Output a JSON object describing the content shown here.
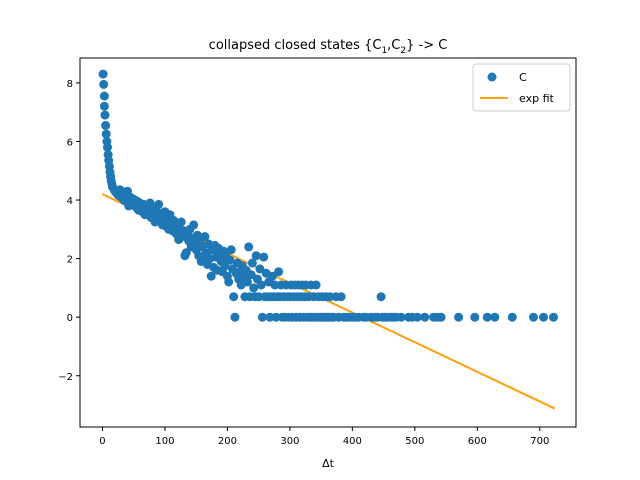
{
  "chart_data": {
    "type": "scatter",
    "title_main": "collapsed closed states {C",
    "title_sub1": "1",
    "title_sep": ",C",
    "title_sub2": "2",
    "title_tail": "} -> C",
    "xlabel": "Δt",
    "ylabel": "",
    "xlim": [
      -36,
      758
    ],
    "ylim": [
      -3.75,
      8.85
    ],
    "xticks": [
      0,
      100,
      200,
      300,
      400,
      500,
      600,
      700
    ],
    "yticks": [
      -2,
      0,
      2,
      4,
      6,
      8
    ],
    "ytick_labels": [
      "−2",
      "0",
      "2",
      "4",
      "6",
      "8"
    ],
    "colors": {
      "scatter": "#1f77b4",
      "fit": "#ff9f0e"
    },
    "legend": {
      "location": "top-right",
      "scatter_label": "C",
      "fit_label": "exp fit"
    },
    "fit": {
      "x": [
        0,
        724
      ],
      "y": [
        4.2,
        -3.12
      ]
    },
    "series": [
      {
        "name": "C",
        "points": [
          [
            1,
            8.3
          ],
          [
            2,
            7.95
          ],
          [
            3,
            7.55
          ],
          [
            3,
            7.2
          ],
          [
            4,
            6.9
          ],
          [
            5,
            6.55
          ],
          [
            6,
            6.25
          ],
          [
            7,
            6.0
          ],
          [
            8,
            5.8
          ],
          [
            9,
            5.55
          ],
          [
            10,
            5.35
          ],
          [
            11,
            5.15
          ],
          [
            12,
            4.95
          ],
          [
            13,
            4.8
          ],
          [
            14,
            4.65
          ],
          [
            15,
            4.55
          ],
          [
            16,
            4.45
          ],
          [
            18,
            4.38
          ],
          [
            20,
            4.3
          ],
          [
            22,
            4.25
          ],
          [
            24,
            4.2
          ],
          [
            26,
            4.15
          ],
          [
            28,
            4.35
          ],
          [
            30,
            4.1
          ],
          [
            32,
            4.28
          ],
          [
            34,
            4.0
          ],
          [
            36,
            4.15
          ],
          [
            38,
            3.95
          ],
          [
            40,
            4.3
          ],
          [
            42,
            3.8
          ],
          [
            44,
            4.1
          ],
          [
            46,
            3.9
          ],
          [
            48,
            4.05
          ],
          [
            50,
            3.85
          ],
          [
            52,
            4.0
          ],
          [
            54,
            3.75
          ],
          [
            56,
            3.95
          ],
          [
            58,
            3.65
          ],
          [
            60,
            3.9
          ],
          [
            62,
            3.7
          ],
          [
            64,
            3.6
          ],
          [
            66,
            3.85
          ],
          [
            68,
            3.5
          ],
          [
            70,
            3.75
          ],
          [
            72,
            3.55
          ],
          [
            74,
            3.65
          ],
          [
            76,
            3.9
          ],
          [
            78,
            3.4
          ],
          [
            80,
            3.7
          ],
          [
            82,
            3.5
          ],
          [
            84,
            3.25
          ],
          [
            86,
            3.6
          ],
          [
            88,
            3.45
          ],
          [
            90,
            3.85
          ],
          [
            92,
            3.3
          ],
          [
            94,
            3.55
          ],
          [
            96,
            3.15
          ],
          [
            98,
            3.4
          ],
          [
            100,
            3.6
          ],
          [
            102,
            3.1
          ],
          [
            104,
            3.35
          ],
          [
            106,
            3.0
          ],
          [
            108,
            3.5
          ],
          [
            110,
            3.2
          ],
          [
            112,
            2.95
          ],
          [
            114,
            3.3
          ],
          [
            116,
            3.05
          ],
          [
            118,
            2.85
          ],
          [
            120,
            3.2
          ],
          [
            122,
            2.65
          ],
          [
            124,
            3.0
          ],
          [
            126,
            3.25
          ],
          [
            128,
            2.75
          ],
          [
            130,
            2.95
          ],
          [
            132,
            2.1
          ],
          [
            134,
            2.2
          ],
          [
            136,
            2.9
          ],
          [
            138,
            2.6
          ],
          [
            140,
            3.0
          ],
          [
            142,
            2.4
          ],
          [
            144,
            2.7
          ],
          [
            146,
            3.15
          ],
          [
            148,
            2.5
          ],
          [
            150,
            2.3
          ],
          [
            152,
            2.8
          ],
          [
            154,
            2.1
          ],
          [
            156,
            2.6
          ],
          [
            158,
            1.9
          ],
          [
            160,
            2.4
          ],
          [
            162,
            2.0
          ],
          [
            164,
            2.75
          ],
          [
            166,
            2.2
          ],
          [
            168,
            1.8
          ],
          [
            170,
            2.5
          ],
          [
            172,
            2.0
          ],
          [
            174,
            1.4
          ],
          [
            176,
            2.3
          ],
          [
            178,
            1.7
          ],
          [
            180,
            2.45
          ],
          [
            182,
            2.05
          ],
          [
            184,
            1.6
          ],
          [
            186,
            2.35
          ],
          [
            188,
            2.15
          ],
          [
            190,
            1.9
          ],
          [
            192,
            1.55
          ],
          [
            194,
            2.25
          ],
          [
            196,
            1.75
          ],
          [
            198,
            2.05
          ],
          [
            200,
            1.4
          ],
          [
            202,
            1.2
          ],
          [
            204,
            1.95
          ],
          [
            206,
            2.3
          ],
          [
            208,
            1.65
          ],
          [
            210,
            0.7
          ],
          [
            212,
            0.0
          ],
          [
            214,
            1.5
          ],
          [
            216,
            1.85
          ],
          [
            218,
            1.3
          ],
          [
            220,
            1.55
          ],
          [
            222,
            1.1
          ],
          [
            224,
            1.75
          ],
          [
            226,
            1.35
          ],
          [
            228,
            0.7
          ],
          [
            230,
            1.6
          ],
          [
            232,
            1.2
          ],
          [
            234,
            2.4
          ],
          [
            236,
            0.7
          ],
          [
            238,
            1.45
          ],
          [
            240,
            1.85
          ],
          [
            242,
            1.0
          ],
          [
            244,
            0.7
          ],
          [
            246,
            2.1
          ],
          [
            248,
            1.3
          ],
          [
            250,
            0.7
          ],
          [
            252,
            1.65
          ],
          [
            254,
            1.1
          ],
          [
            256,
            0.0
          ],
          [
            258,
            2.05
          ],
          [
            260,
            0.7
          ],
          [
            262,
            1.5
          ],
          [
            264,
            0.7
          ],
          [
            266,
            1.2
          ],
          [
            268,
            0.0
          ],
          [
            270,
            0.7
          ],
          [
            272,
            1.4
          ],
          [
            274,
            0.7
          ],
          [
            276,
            1.1
          ],
          [
            278,
            0.0
          ],
          [
            280,
            0.7
          ],
          [
            282,
            1.55
          ],
          [
            284,
            0.7
          ],
          [
            286,
            1.1
          ],
          [
            288,
            0.0
          ],
          [
            290,
            0.7
          ],
          [
            292,
            0.0
          ],
          [
            294,
            1.1
          ],
          [
            296,
            0.7
          ],
          [
            298,
            0.0
          ],
          [
            300,
            0.7
          ],
          [
            302,
            1.1
          ],
          [
            304,
            0.0
          ],
          [
            306,
            0.7
          ],
          [
            308,
            1.1
          ],
          [
            310,
            0.0
          ],
          [
            312,
            0.7
          ],
          [
            314,
            1.1
          ],
          [
            316,
            0.0
          ],
          [
            318,
            0.7
          ],
          [
            320,
            1.1
          ],
          [
            322,
            0.0
          ],
          [
            324,
            0.7
          ],
          [
            326,
            1.1
          ],
          [
            328,
            0.0
          ],
          [
            330,
            0.7
          ],
          [
            332,
            0.0
          ],
          [
            334,
            1.1
          ],
          [
            336,
            0.0
          ],
          [
            338,
            0.7
          ],
          [
            340,
            0.0
          ],
          [
            342,
            1.1
          ],
          [
            344,
            0.0
          ],
          [
            346,
            0.7
          ],
          [
            348,
            0.0
          ],
          [
            350,
            0.0
          ],
          [
            352,
            0.7
          ],
          [
            354,
            0.0
          ],
          [
            356,
            0.0
          ],
          [
            358,
            0.7
          ],
          [
            360,
            0.0
          ],
          [
            362,
            0.0
          ],
          [
            364,
            0.7
          ],
          [
            366,
            0.0
          ],
          [
            370,
            0.0
          ],
          [
            374,
            0.7
          ],
          [
            378,
            0.0
          ],
          [
            382,
            0.7
          ],
          [
            386,
            0.0
          ],
          [
            390,
            0.0
          ],
          [
            394,
            0.0
          ],
          [
            400,
            0.0
          ],
          [
            404,
            0.0
          ],
          [
            410,
            0.0
          ],
          [
            418,
            0.0
          ],
          [
            422,
            0.0
          ],
          [
            430,
            0.0
          ],
          [
            436,
            0.0
          ],
          [
            440,
            0.0
          ],
          [
            446,
            0.7
          ],
          [
            448,
            0.0
          ],
          [
            452,
            0.0
          ],
          [
            456,
            0.0
          ],
          [
            462,
            0.0
          ],
          [
            466,
            0.0
          ],
          [
            470,
            0.0
          ],
          [
            478,
            0.0
          ],
          [
            490,
            0.0
          ],
          [
            496,
            0.0
          ],
          [
            504,
            0.0
          ],
          [
            516,
            0.0
          ],
          [
            530,
            0.0
          ],
          [
            536,
            0.0
          ],
          [
            542,
            0.0
          ],
          [
            570,
            0.0
          ],
          [
            596,
            0.0
          ],
          [
            616,
            0.0
          ],
          [
            628,
            0.0
          ],
          [
            656,
            0.0
          ],
          [
            690,
            0.0
          ],
          [
            706,
            0.0
          ],
          [
            722,
            0.0
          ]
        ]
      }
    ]
  }
}
